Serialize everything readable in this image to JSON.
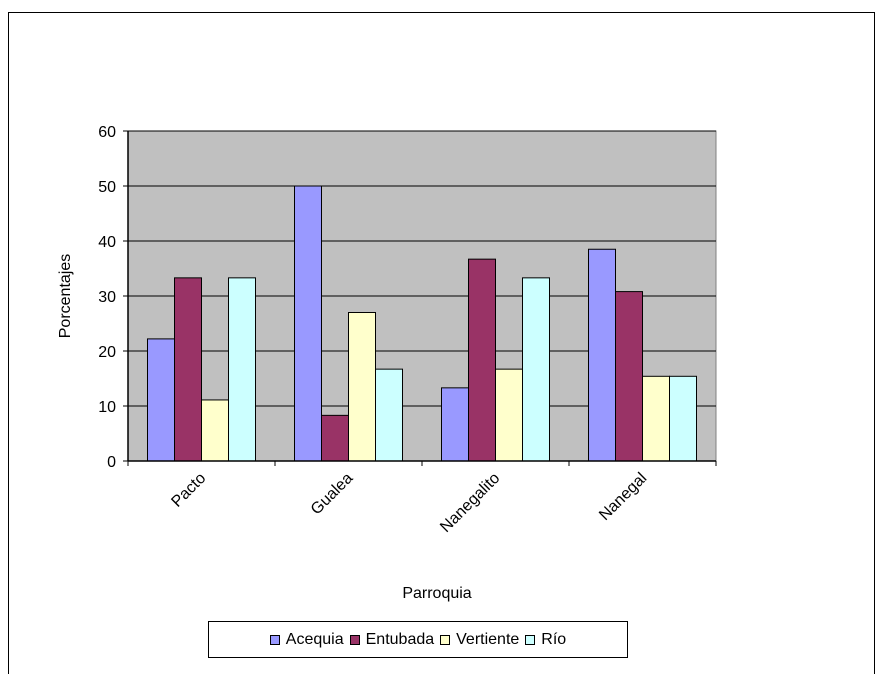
{
  "chart_data": {
    "type": "bar",
    "categories": [
      "Pacto",
      "Gualea",
      "Nanegalito",
      "Nanegal"
    ],
    "series": [
      {
        "name": "Acequia",
        "color": "#9999ff",
        "values": [
          22.2,
          50,
          13.3,
          38.5
        ]
      },
      {
        "name": "Entubada",
        "color": "#993366",
        "values": [
          33.3,
          8.3,
          36.7,
          30.8
        ]
      },
      {
        "name": "Vertiente",
        "color": "#ffffcc",
        "values": [
          11.1,
          27.0,
          16.7,
          15.4
        ]
      },
      {
        "name": "Río",
        "color": "#ccffff",
        "values": [
          33.3,
          16.7,
          33.3,
          15.4
        ]
      }
    ],
    "xlabel": "Parroquia",
    "ylabel": "Porcentajes",
    "ylim": [
      0,
      60
    ],
    "yticks": [
      0,
      10,
      20,
      30,
      40,
      50,
      60
    ],
    "plot_background": "#c0c0c0",
    "grid": true,
    "legend": "bottom"
  }
}
